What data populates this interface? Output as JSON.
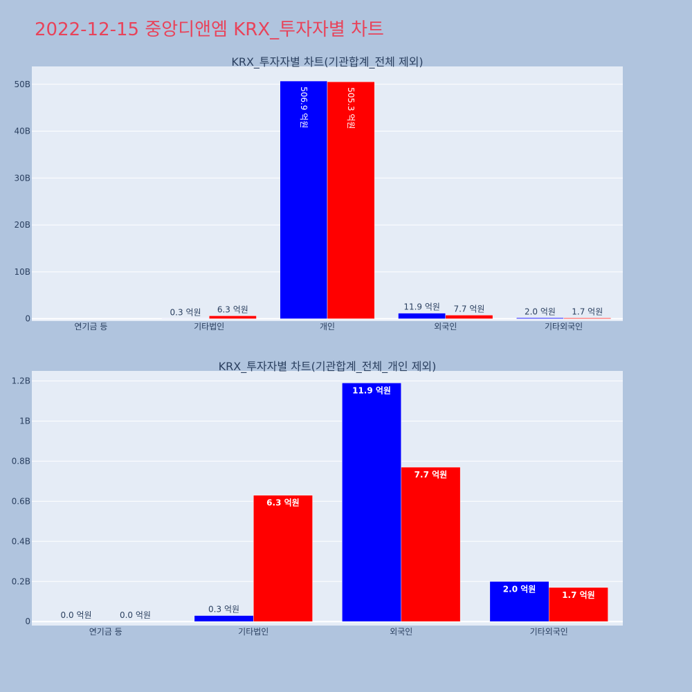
{
  "title": "2022-12-15 중앙디앤엠 KRX_투자자별 차트",
  "colors": {
    "buy": "#0000ff",
    "sell": "#ff0000",
    "plot_bg": "#e5ecf6",
    "page_bg": "#b0c4de",
    "title": "#e8435a"
  },
  "chart_data": [
    {
      "type": "bar",
      "title": "KRX_투자자별 차트(기관합계_전체 제외)",
      "categories": [
        "연기금 등",
        "기타법인",
        "개인",
        "외국인",
        "기타외국인"
      ],
      "series": [
        {
          "color": "#0000ff",
          "values": [
            0,
            30000000,
            50690000000,
            1190000000,
            200000000
          ],
          "labels": [
            "",
            "0.3 억원",
            "506.9 억원",
            "11.9 억원",
            "2.0 억원"
          ]
        },
        {
          "color": "#ff0000",
          "values": [
            0,
            630000000,
            50530000000,
            770000000,
            170000000
          ],
          "labels": [
            "",
            "6.3 억원",
            "505.3 억원",
            "7.7 억원",
            "1.7 억원"
          ]
        }
      ],
      "yticks": [
        0,
        10000000000,
        20000000000,
        30000000000,
        40000000000,
        50000000000
      ],
      "ytick_labels": [
        "0",
        "10B",
        "20B",
        "30B",
        "40B",
        "50B"
      ],
      "ylim": [
        -500000000,
        53800000000
      ],
      "grid": true
    },
    {
      "type": "bar",
      "title": "KRX_투자자별 차트(기관합계_전체_개인 제외)",
      "categories": [
        "연기금 등",
        "기타법인",
        "외국인",
        "기타외국인"
      ],
      "series": [
        {
          "color": "#0000ff",
          "values": [
            0,
            30000000,
            1190000000,
            200000000
          ],
          "labels": [
            "0.0 억원",
            "0.3 억원",
            "11.9 억원",
            "2.0 억원"
          ]
        },
        {
          "color": "#ff0000",
          "values": [
            0,
            630000000,
            770000000,
            170000000
          ],
          "labels": [
            "0.0 억원",
            "6.3 억원",
            "7.7 억원",
            "1.7 억원"
          ]
        }
      ],
      "yticks": [
        0,
        200000000,
        400000000,
        600000000,
        800000000,
        1000000000,
        1200000000
      ],
      "ytick_labels": [
        "0",
        "0.2B",
        "0.4B",
        "0.6B",
        "0.8B",
        "1B",
        "1.2B"
      ],
      "ylim": [
        -20000000,
        1250000000
      ],
      "grid": true
    }
  ]
}
